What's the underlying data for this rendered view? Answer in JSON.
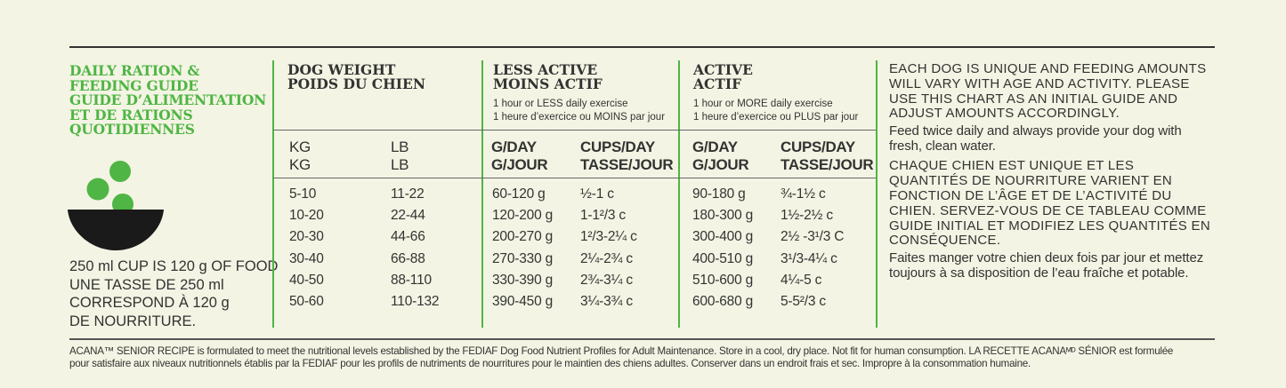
{
  "title_lines": [
    "DAILY RATION &",
    "FEEDING GUIDE",
    "GUIDE D’ALIMENTATION",
    "ET DE RATIONS",
    "QUOTIDIENNES"
  ],
  "cup_note_lines": [
    "250 ml CUP IS 120 g OF FOOD",
    "UNE TASSE DE 250 ml",
    "CORRESPOND À 120 g",
    "DE NOURRITURE."
  ],
  "dog_weight": {
    "heading_en": "DOG WEIGHT",
    "heading_fr": "POIDS DU CHIEN",
    "kg_en": "KG",
    "kg_fr": "KG",
    "lb_en": "LB",
    "lb_fr": "LB"
  },
  "less_active": {
    "heading_en": "LESS ACTIVE",
    "heading_fr": "MOINS ACTIF",
    "sub_en": "1 hour or LESS daily exercise",
    "sub_fr": "1 heure d’exercice ou MOINS par jour",
    "gday_en": "G/DAY",
    "gday_fr": "G/JOUR",
    "cups_en": "CUPS/DAY",
    "cups_fr": "TASSE/JOUR"
  },
  "active": {
    "heading_en": "ACTIVE",
    "heading_fr": "ACTIF",
    "sub_en": "1 hour or MORE daily exercise",
    "sub_fr": "1 heure d’exercice ou PLUS par jour",
    "gday_en": "G/DAY",
    "gday_fr": "G/JOUR",
    "cups_en": "CUPS/DAY",
    "cups_fr": "TASSE/JOUR"
  },
  "rows": [
    {
      "kg": "5-10",
      "lb": "11-22",
      "less_g": "60-120 g",
      "less_cups": "½-1 c",
      "active_g": "90-180 g",
      "active_cups": "¾-1½ c"
    },
    {
      "kg": "10-20",
      "lb": "22-44",
      "less_g": "120-200 g",
      "less_cups": "1-1²/3 c",
      "active_g": "180-300 g",
      "active_cups": "1½-2½ c"
    },
    {
      "kg": "20-30",
      "lb": "44-66",
      "less_g": "200-270 g",
      "less_cups": "1²/3-2¼ c",
      "active_g": "300-400 g",
      "active_cups": "2½ -3¹/3 C"
    },
    {
      "kg": "30-40",
      "lb": "66-88",
      "less_g": "270-330 g",
      "less_cups": "2¼-2¾ c",
      "active_g": "400-510 g",
      "active_cups": "3¹/3-4¼ c"
    },
    {
      "kg": "40-50",
      "lb": "88-110",
      "less_g": "330-390 g",
      "less_cups": "2¾-3¼ c",
      "active_g": "510-600 g",
      "active_cups": "4¼-5 c"
    },
    {
      "kg": "50-60",
      "lb": "110-132",
      "less_g": "390-450 g",
      "less_cups": "3¼-3¾ c",
      "active_g": "600-680 g",
      "active_cups": "5-5²/3 c"
    }
  ],
  "notes": {
    "caps_en": "EACH DOG IS UNIQUE AND FEEDING AMOUNTS WILL VARY WITH AGE AND ACTIVITY. PLEASE USE THIS CHART AS AN INITIAL GUIDE AND ADJUST AMOUNTS ACCORDINGLY.",
    "plain_en": "Feed twice daily and always provide your dog with fresh, clean water.",
    "caps_fr": "CHAQUE CHIEN EST UNIQUE ET LES QUANTITÉS DE NOURRITURE VARIENT EN FONCTION DE L’ÂGE ET DE L’ACTIVITÉ DU CHIEN. SERVEZ-VOUS DE CE TABLEAU COMME GUIDE INITIAL ET MODIFIEZ LES QUANTITÉS EN CONSÉQUENCE.",
    "plain_fr": "Faites manger votre chien deux fois par jour et mettez toujours à sa disposition de l’eau fraîche et potable."
  },
  "footer_lines": [
    "ACANA™ SENIOR RECIPE is formulated to meet the nutritional levels established by the FEDIAF Dog Food Nutrient Profiles for Adult Maintenance. Store in a cool, dry place. Not fit for human consumption. LA RECETTE ACANAᴹᴰ SÉNIOR est formulée",
    "pour satisfaire aux niveaux nutritionnels établis par la FEDIAF pour les profils de nutriments de nourritures pour le maintien des chiens adultes. Conserver dans un endroit frais et sec. Impropre à la consommation humaine."
  ],
  "colors": {
    "accent_green": "#4fb544",
    "text": "#333333",
    "background": "#f3f4e3",
    "bowl": "#1a1a1a"
  },
  "icons": [
    "food-bowl-icon",
    "kibble-pieces-icon"
  ]
}
